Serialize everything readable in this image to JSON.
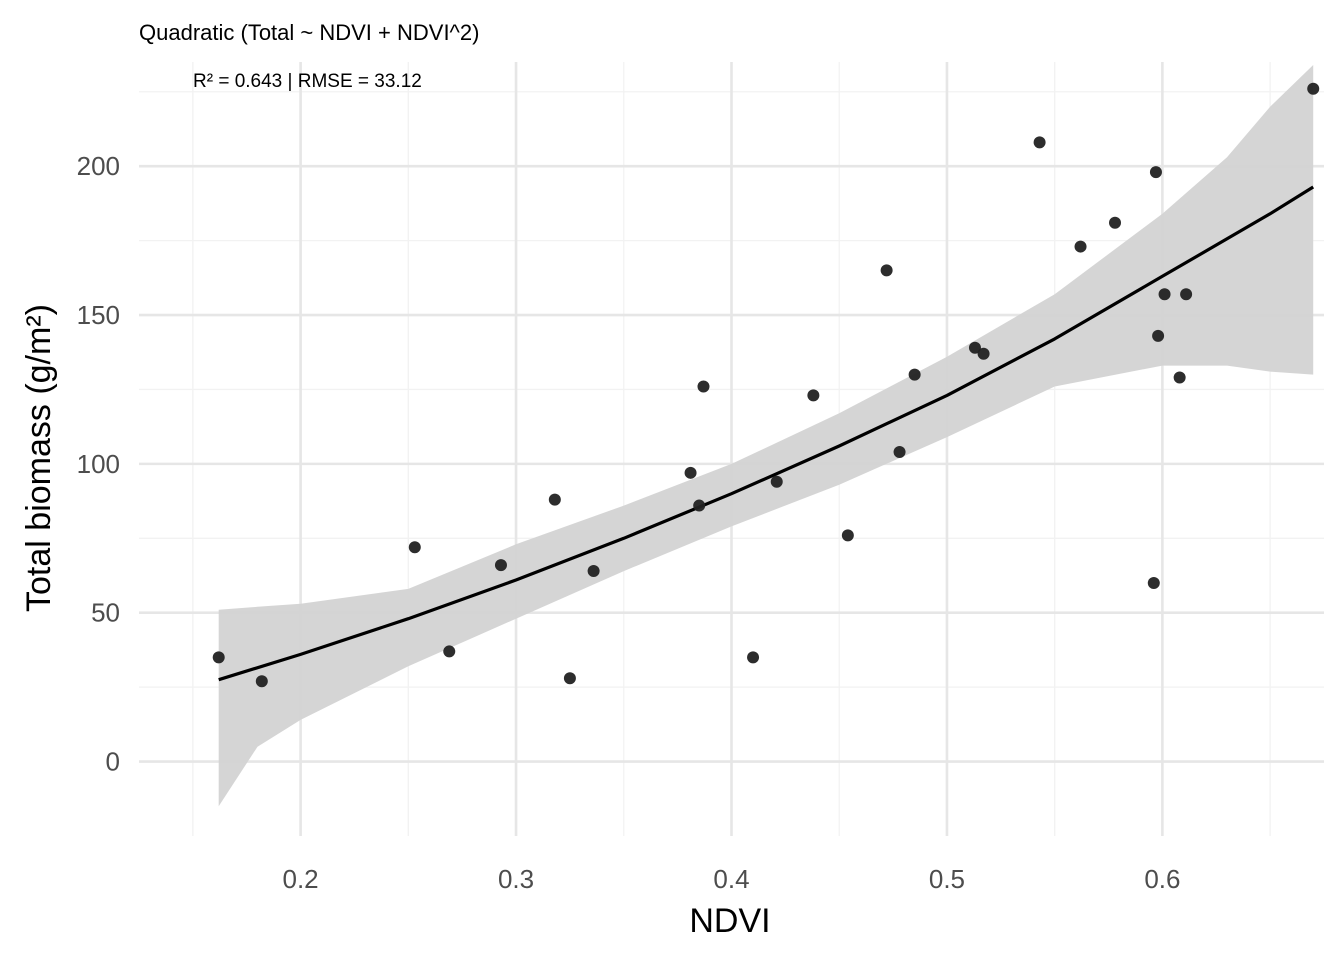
{
  "chart_data": {
    "type": "scatter",
    "subtitle": "Quadratic (Total ~ NDVI + NDVI^2)",
    "annotation": "R² = 0.643 | RMSE = 33.12",
    "xlabel": "NDVI",
    "ylabel": "Total biomass (g/m²)",
    "xlim": [
      0.125,
      0.675
    ],
    "ylim": [
      -25,
      235
    ],
    "x_ticks": [
      0.2,
      0.3,
      0.4,
      0.5,
      0.6
    ],
    "x_tick_labels": [
      "0.2",
      "0.3",
      "0.4",
      "0.5",
      "0.6"
    ],
    "y_ticks": [
      0,
      50,
      100,
      150,
      200
    ],
    "y_tick_labels": [
      "0",
      "50",
      "100",
      "150",
      "200"
    ],
    "grid": true,
    "points": [
      {
        "x": 0.162,
        "y": 35
      },
      {
        "x": 0.182,
        "y": 27
      },
      {
        "x": 0.253,
        "y": 72
      },
      {
        "x": 0.269,
        "y": 37
      },
      {
        "x": 0.293,
        "y": 66
      },
      {
        "x": 0.318,
        "y": 88
      },
      {
        "x": 0.325,
        "y": 28
      },
      {
        "x": 0.336,
        "y": 64
      },
      {
        "x": 0.381,
        "y": 97
      },
      {
        "x": 0.385,
        "y": 86
      },
      {
        "x": 0.387,
        "y": 126
      },
      {
        "x": 0.41,
        "y": 35
      },
      {
        "x": 0.421,
        "y": 94
      },
      {
        "x": 0.438,
        "y": 123
      },
      {
        "x": 0.454,
        "y": 76
      },
      {
        "x": 0.472,
        "y": 165
      },
      {
        "x": 0.478,
        "y": 104
      },
      {
        "x": 0.485,
        "y": 130
      },
      {
        "x": 0.513,
        "y": 139
      },
      {
        "x": 0.517,
        "y": 137
      },
      {
        "x": 0.543,
        "y": 208
      },
      {
        "x": 0.562,
        "y": 173
      },
      {
        "x": 0.578,
        "y": 181
      },
      {
        "x": 0.597,
        "y": 198
      },
      {
        "x": 0.596,
        "y": 60
      },
      {
        "x": 0.598,
        "y": 143
      },
      {
        "x": 0.601,
        "y": 157
      },
      {
        "x": 0.608,
        "y": 129
      },
      {
        "x": 0.611,
        "y": 157
      },
      {
        "x": 0.67,
        "y": 226
      }
    ],
    "fit_line": {
      "x": [
        0.162,
        0.2,
        0.25,
        0.3,
        0.35,
        0.4,
        0.45,
        0.5,
        0.55,
        0.6,
        0.65,
        0.67
      ],
      "y": [
        27.5,
        36,
        48,
        61,
        75,
        90,
        106,
        123,
        142,
        163,
        184,
        193
      ]
    },
    "confidence_band": {
      "x": [
        0.162,
        0.18,
        0.2,
        0.25,
        0.3,
        0.35,
        0.4,
        0.45,
        0.5,
        0.55,
        0.6,
        0.63,
        0.65,
        0.67
      ],
      "lower": [
        -15,
        5,
        14,
        32,
        48,
        64,
        79,
        93,
        109,
        126,
        133,
        133,
        131,
        130
      ],
      "upper": [
        51,
        52,
        53,
        58,
        73,
        86,
        100,
        117,
        136,
        157,
        184,
        203,
        220,
        234
      ]
    },
    "colors": {
      "point": "#222222",
      "fit_line": "#000000",
      "band": "#d3d3d3",
      "grid_major": "#e6e6e6",
      "grid_minor": "#f2f2f2",
      "tick_label": "#4d4d4d"
    }
  }
}
